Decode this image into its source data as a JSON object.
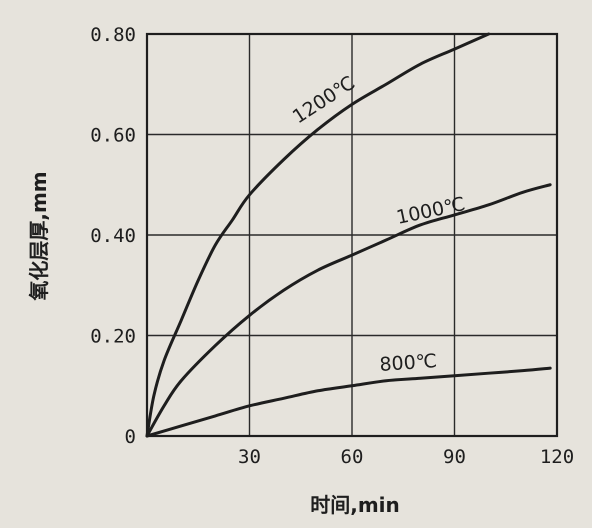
{
  "chart_data": {
    "type": "line",
    "xlabel": "时间,min",
    "ylabel": "氧化层厚,mm",
    "xlim": [
      0,
      120
    ],
    "ylim": [
      0,
      0.8
    ],
    "x_ticks": [
      0,
      30,
      60,
      90,
      120
    ],
    "x_tick_labels": [
      "30",
      "60",
      "90",
      "120"
    ],
    "y_ticks": [
      0,
      0.2,
      0.4,
      0.6,
      0.8
    ],
    "y_tick_labels": [
      "0",
      "0.20",
      "0.40",
      "0.60",
      "0.80"
    ],
    "grid": true,
    "series": [
      {
        "name": "1200℃",
        "x": [
          0,
          2,
          5,
          10,
          15,
          20,
          25,
          30,
          40,
          50,
          60,
          70,
          80,
          90,
          100
        ],
        "y": [
          0,
          0.08,
          0.15,
          0.23,
          0.31,
          0.38,
          0.43,
          0.48,
          0.55,
          0.61,
          0.66,
          0.7,
          0.74,
          0.77,
          0.8
        ]
      },
      {
        "name": "1000℃",
        "x": [
          0,
          5,
          10,
          20,
          30,
          40,
          50,
          60,
          70,
          80,
          90,
          100,
          110,
          118
        ],
        "y": [
          0,
          0.06,
          0.11,
          0.18,
          0.24,
          0.29,
          0.33,
          0.36,
          0.39,
          0.42,
          0.44,
          0.46,
          0.485,
          0.5
        ]
      },
      {
        "name": "800℃",
        "x": [
          0,
          10,
          20,
          30,
          40,
          50,
          60,
          70,
          80,
          90,
          100,
          110,
          118
        ],
        "y": [
          0,
          0.02,
          0.04,
          0.06,
          0.075,
          0.09,
          0.1,
          0.11,
          0.115,
          0.12,
          0.125,
          0.13,
          0.135
        ]
      }
    ],
    "colors": {
      "line": "#1e1e1e",
      "grid": "#2a2a2a",
      "background": "#e6e3dc"
    }
  }
}
